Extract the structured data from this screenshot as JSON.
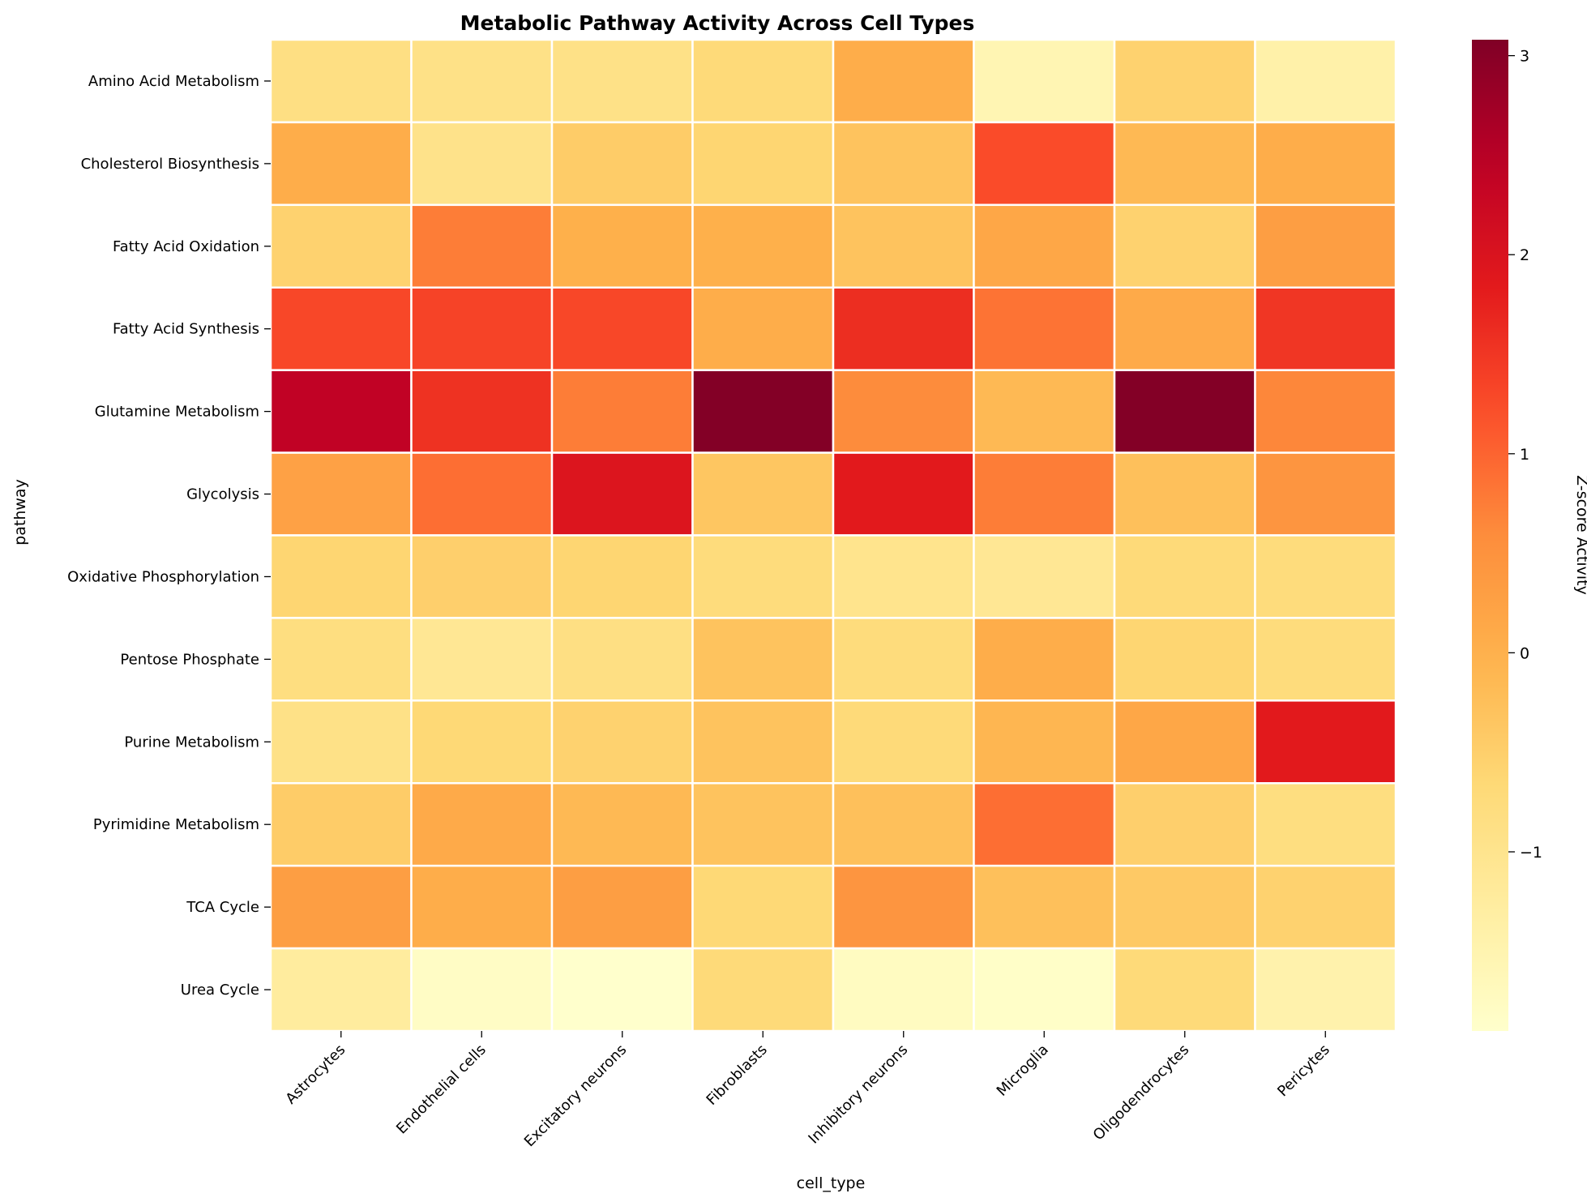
{
  "chart_data": {
    "type": "heatmap",
    "title": "Metabolic Pathway Activity Across Cell Types",
    "xlabel": "cell_type",
    "ylabel": "pathway",
    "colorbar_label": "Z-score Activity",
    "colormap": "YlOrRd",
    "vmin": -1.9,
    "vmax": 3.08,
    "colorbar_ticks": [
      3,
      2,
      1,
      0,
      -1
    ],
    "colorbar_tick_labels": [
      "3",
      "2",
      "1",
      "0",
      "−1"
    ],
    "columns": [
      "Astrocytes",
      "Endothelial cells",
      "Excitatory neurons",
      "Fibroblasts",
      "Inhibitory neurons",
      "Microglia",
      "Oligodendrocytes",
      "Pericytes"
    ],
    "rows": [
      "Amino Acid Metabolism",
      "Cholesterol Biosynthesis",
      "Fatty Acid Oxidation",
      "Fatty Acid Synthesis",
      "Glutamine Metabolism",
      "Glycolysis",
      "Oxidative Phosphorylation",
      "Pentose Phosphate",
      "Purine Metabolism",
      "Pyrimidine Metabolism",
      "TCA Cycle",
      "Urea Cycle"
    ],
    "values": [
      [
        -0.85,
        -0.9,
        -0.9,
        -0.7,
        0.05,
        -1.55,
        -0.55,
        -1.4
      ],
      [
        0.05,
        -0.95,
        -0.45,
        -0.6,
        -0.3,
        1.25,
        -0.15,
        0.05
      ],
      [
        -0.55,
        0.75,
        0.0,
        0.0,
        -0.3,
        0.15,
        -0.55,
        0.3
      ],
      [
        1.3,
        1.35,
        1.3,
        0.05,
        1.6,
        0.85,
        0.1,
        1.5
      ],
      [
        2.4,
        1.55,
        0.75,
        3.05,
        0.6,
        -0.15,
        3.05,
        0.65
      ],
      [
        0.25,
        0.9,
        1.95,
        -0.35,
        1.85,
        0.75,
        -0.25,
        0.45
      ],
      [
        -0.6,
        -0.5,
        -0.6,
        -0.75,
        -1.0,
        -1.1,
        -0.7,
        -0.75
      ],
      [
        -0.8,
        -1.1,
        -0.85,
        -0.3,
        -0.75,
        0.05,
        -0.6,
        -0.75
      ],
      [
        -0.9,
        -0.65,
        -0.55,
        -0.3,
        -0.7,
        -0.1,
        0.15,
        1.85
      ],
      [
        -0.45,
        0.1,
        -0.15,
        -0.3,
        -0.25,
        0.9,
        -0.5,
        -0.8
      ],
      [
        0.3,
        0.05,
        0.3,
        -0.65,
        0.45,
        -0.25,
        -0.4,
        -0.55
      ],
      [
        -1.25,
        -1.8,
        -1.9,
        -0.7,
        -1.75,
        -1.85,
        -0.7,
        -1.45
      ]
    ]
  }
}
